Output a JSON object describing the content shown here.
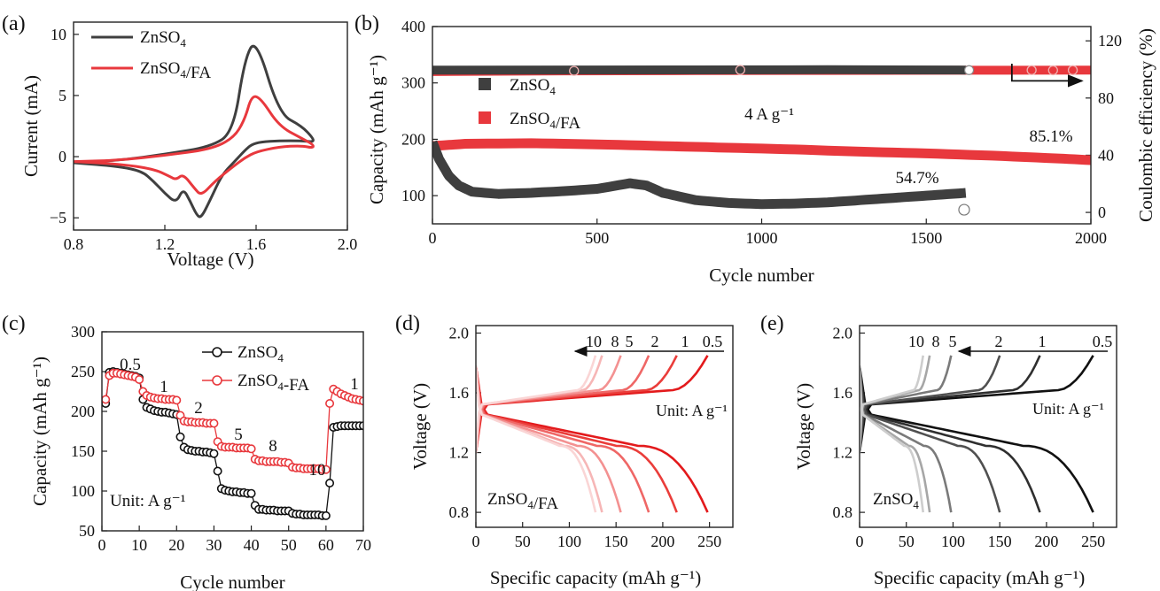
{
  "figure": {
    "colors": {
      "znso4": "#3f3f3f",
      "fa": "#e8383d",
      "axis": "#222222"
    },
    "panels": [
      {
        "id": "a",
        "tag": "(a)"
      },
      {
        "id": "b",
        "tag": "(b)"
      },
      {
        "id": "c",
        "tag": "(c)"
      },
      {
        "id": "d",
        "tag": "(d)"
      },
      {
        "id": "e",
        "tag": "(e)"
      }
    ]
  },
  "chart_data": [
    {
      "panel": "(a)",
      "type": "line",
      "xlabel": "Voltage (V)",
      "ylabel": "Current (mA)",
      "xlim": [
        0.8,
        2.0
      ],
      "ylim": [
        -6,
        11
      ],
      "xticks": [
        0.8,
        1.2,
        1.6,
        2.0
      ],
      "xtick_labels": [
        "0.8",
        "1.2",
        "1.6",
        "2.0"
      ],
      "yticks": [
        -5,
        0,
        5,
        10
      ],
      "ytick_labels": [
        "−5",
        "0",
        "5",
        "10"
      ],
      "legend": [
        "ZnSO4",
        "ZnSO4/FA"
      ],
      "series": [
        {
          "name": "ZnSO4",
          "x": [
            0.8,
            1.0,
            1.1,
            1.15,
            1.2,
            1.25,
            1.28,
            1.31,
            1.34,
            1.36,
            1.4,
            1.45,
            1.5,
            1.55,
            1.58,
            1.62,
            1.7,
            1.8,
            1.85,
            1.85,
            1.8,
            1.7,
            1.6,
            1.55,
            1.5,
            1.4,
            1.2,
            1.0,
            0.8
          ],
          "y": [
            -0.5,
            -0.8,
            -1.2,
            -2.0,
            -3.0,
            -3.8,
            -2.6,
            -3.6,
            -4.8,
            -5.0,
            -3.5,
            -1.5,
            -0.5,
            0.5,
            1.0,
            1.2,
            1.3,
            1.3,
            1.2,
            1.5,
            2.5,
            3.5,
            9.7,
            8.0,
            2.0,
            0.8,
            0.2,
            -0.3,
            -0.5
          ]
        },
        {
          "name": "ZnSO4/FA",
          "x": [
            0.8,
            1.0,
            1.15,
            1.22,
            1.25,
            1.28,
            1.33,
            1.36,
            1.42,
            1.5,
            1.55,
            1.6,
            1.7,
            1.8,
            1.85,
            1.85,
            1.8,
            1.7,
            1.62,
            1.58,
            1.55,
            1.5,
            1.4,
            1.2,
            1.0,
            0.8
          ],
          "y": [
            -0.4,
            -0.6,
            -1.0,
            -1.6,
            -1.9,
            -1.4,
            -2.6,
            -3.2,
            -2.0,
            -0.8,
            -0.1,
            0.4,
            0.8,
            0.9,
            0.7,
            1.0,
            1.5,
            2.5,
            4.8,
            5.0,
            3.0,
            1.5,
            0.6,
            0.1,
            -0.3,
            -0.4
          ]
        }
      ]
    },
    {
      "panel": "(b)",
      "type": "scatter",
      "xlabel": "Cycle number",
      "ylabel": "Capacity (mAh g⁻¹)",
      "ylabel_right": "Coulombic efficiency (%)",
      "xlim": [
        0,
        2000
      ],
      "ylim": [
        50,
        400
      ],
      "ylim_right": [
        -8,
        130
      ],
      "xticks": [
        0,
        500,
        1000,
        1500,
        2000
      ],
      "xtick_labels": [
        "0",
        "500",
        "1000",
        "1500",
        "2000"
      ],
      "yticks": [
        100,
        200,
        300,
        400
      ],
      "ytick_labels": [
        "100",
        "200",
        "300",
        "400"
      ],
      "yticks_right": [
        0,
        40,
        80,
        120
      ],
      "ytick_labels_right": [
        "0",
        "40",
        "80",
        "120"
      ],
      "legend": [
        "ZnSO4",
        "ZnSO4/FA"
      ],
      "annotations": [
        "4 A g⁻¹",
        "85.1%",
        "54.7%"
      ],
      "series": [
        {
          "name": "ZnSO4 capacity",
          "x": [
            0,
            20,
            50,
            80,
            120,
            200,
            300,
            400,
            500,
            600,
            650,
            700,
            800,
            900,
            1000,
            1100,
            1200,
            1300,
            1400,
            1500,
            1600,
            1620
          ],
          "y": [
            195,
            165,
            135,
            118,
            107,
            103,
            105,
            108,
            112,
            122,
            118,
            105,
            92,
            87,
            85,
            86,
            88,
            92,
            96,
            100,
            104,
            105
          ]
        },
        {
          "name": "ZnSO4/FA capacity",
          "x": [
            0,
            100,
            300,
            500,
            700,
            900,
            1100,
            1300,
            1500,
            1700,
            1900,
            2000
          ],
          "y": [
            188,
            192,
            193,
            191,
            188,
            185,
            182,
            178,
            175,
            171,
            166,
            163
          ]
        },
        {
          "name": "ZnSO4 CE",
          "x": [
            0,
            400,
            800,
            1200,
            1600,
            1620
          ],
          "y": [
            99.5,
            99.6,
            99.7,
            99.8,
            99.6,
            99.5
          ]
        },
        {
          "name": "ZnSO4/FA CE",
          "x": [
            0,
            400,
            800,
            1200,
            1600,
            2000
          ],
          "y": [
            98.5,
            99.0,
            99.2,
            99.3,
            99.4,
            99.5
          ]
        }
      ]
    },
    {
      "panel": "(c)",
      "type": "line",
      "xlabel": "Cycle number",
      "ylabel": "Capacity (mAh g⁻¹)",
      "xlim": [
        0,
        70
      ],
      "ylim": [
        50,
        300
      ],
      "xticks": [
        0,
        10,
        20,
        30,
        40,
        50,
        60,
        70
      ],
      "xtick_labels": [
        "0",
        "10",
        "20",
        "30",
        "40",
        "50",
        "60",
        "70"
      ],
      "yticks": [
        50,
        100,
        150,
        200,
        250,
        300
      ],
      "ytick_labels": [
        "50",
        "100",
        "150",
        "200",
        "250",
        "300"
      ],
      "legend": [
        "ZnSO4",
        "ZnSO4-FA"
      ],
      "annotations": [
        "0.5",
        "1",
        "2",
        "5",
        "8",
        "10",
        "1",
        "Unit: A g⁻¹"
      ],
      "series": [
        {
          "name": "ZnSO4",
          "x": [
            1,
            2,
            3,
            4,
            5,
            6,
            7,
            8,
            9,
            10,
            11,
            12,
            13,
            14,
            15,
            16,
            17,
            18,
            19,
            20,
            21,
            22,
            23,
            24,
            25,
            26,
            27,
            28,
            29,
            30,
            31,
            32,
            33,
            34,
            35,
            36,
            37,
            38,
            39,
            40,
            41,
            42,
            43,
            44,
            45,
            46,
            47,
            48,
            49,
            50,
            51,
            52,
            53,
            54,
            55,
            56,
            57,
            58,
            59,
            60,
            61,
            62,
            63,
            64,
            65,
            66,
            67,
            68,
            69,
            70
          ],
          "y": [
            210,
            249,
            250,
            249,
            248,
            247,
            246,
            245,
            244,
            242,
            215,
            205,
            203,
            201,
            200,
            199,
            199,
            198,
            197,
            196,
            168,
            155,
            152,
            151,
            150,
            150,
            149,
            149,
            148,
            147,
            125,
            103,
            101,
            100,
            99,
            99,
            98,
            98,
            97,
            97,
            82,
            77,
            77,
            76,
            76,
            76,
            75,
            75,
            75,
            75,
            72,
            71,
            71,
            70,
            70,
            70,
            70,
            70,
            69,
            69,
            110,
            180,
            181,
            182,
            182,
            182,
            182,
            182,
            182,
            182
          ]
        },
        {
          "name": "ZnSO4-FA",
          "x": [
            1,
            2,
            3,
            4,
            5,
            6,
            7,
            8,
            9,
            10,
            11,
            12,
            13,
            14,
            15,
            16,
            17,
            18,
            19,
            20,
            21,
            22,
            23,
            24,
            25,
            26,
            27,
            28,
            29,
            30,
            31,
            32,
            33,
            34,
            35,
            36,
            37,
            38,
            39,
            40,
            41,
            42,
            43,
            44,
            45,
            46,
            47,
            48,
            49,
            50,
            51,
            52,
            53,
            54,
            55,
            56,
            57,
            58,
            59,
            60,
            61,
            62,
            63,
            64,
            65,
            66,
            67,
            68,
            69,
            70
          ],
          "y": [
            215,
            245,
            248,
            248,
            247,
            246,
            245,
            244,
            243,
            240,
            225,
            220,
            218,
            217,
            216,
            216,
            215,
            215,
            215,
            214,
            195,
            188,
            187,
            187,
            186,
            186,
            186,
            185,
            185,
            185,
            162,
            156,
            155,
            155,
            155,
            154,
            154,
            154,
            154,
            153,
            140,
            138,
            138,
            137,
            137,
            137,
            137,
            136,
            136,
            135,
            130,
            129,
            129,
            128,
            128,
            128,
            128,
            128,
            127,
            127,
            210,
            228,
            225,
            222,
            220,
            218,
            216,
            215,
            214,
            213
          ]
        }
      ]
    },
    {
      "panel": "(d)",
      "type": "line",
      "xlabel": "Specific capacity (mAh g⁻¹)",
      "ylabel": "Voltage (V)",
      "xlim": [
        0,
        275
      ],
      "ylim": [
        0.7,
        2.05
      ],
      "xticks": [
        0,
        50,
        100,
        150,
        200,
        250
      ],
      "xtick_labels": [
        "0",
        "50",
        "100",
        "150",
        "200",
        "250"
      ],
      "yticks": [
        0.8,
        1.2,
        1.6,
        2.0
      ],
      "ytick_labels": [
        "0.8",
        "1.2",
        "1.6",
        "2.0"
      ],
      "rate_labels": [
        "10",
        "8",
        "5",
        "2",
        "1",
        "0.5"
      ],
      "annotations": [
        "Unit: A g⁻¹",
        "ZnSO4/FA"
      ],
      "discharge_capacity": [
        128,
        135,
        155,
        185,
        215,
        248
      ],
      "series": [
        {
          "name": "0.5",
          "capacity": 248
        },
        {
          "name": "1",
          "capacity": 215
        },
        {
          "name": "2",
          "capacity": 185
        },
        {
          "name": "5",
          "capacity": 155
        },
        {
          "name": "8",
          "capacity": 135
        },
        {
          "name": "10",
          "capacity": 128
        }
      ]
    },
    {
      "panel": "(e)",
      "type": "line",
      "xlabel": "Specific capacity (mAh g⁻¹)",
      "ylabel": "Voltage (V)",
      "xlim": [
        0,
        275
      ],
      "ylim": [
        0.7,
        2.05
      ],
      "xticks": [
        0,
        50,
        100,
        150,
        200,
        250
      ],
      "xtick_labels": [
        "0",
        "50",
        "100",
        "150",
        "200",
        "250"
      ],
      "yticks": [
        0.8,
        1.2,
        1.6,
        2.0
      ],
      "ytick_labels": [
        "0.8",
        "1.2",
        "1.6",
        "2.0"
      ],
      "rate_labels": [
        "10",
        "8",
        "5",
        "2",
        "1",
        "0.5"
      ],
      "annotations": [
        "Unit: A g⁻¹",
        "ZnSO4"
      ],
      "discharge_capacity": [
        68,
        75,
        98,
        150,
        193,
        250
      ],
      "series": [
        {
          "name": "0.5",
          "capacity": 250
        },
        {
          "name": "1",
          "capacity": 193
        },
        {
          "name": "2",
          "capacity": 150
        },
        {
          "name": "5",
          "capacity": 98
        },
        {
          "name": "8",
          "capacity": 75
        },
        {
          "name": "10",
          "capacity": 68
        }
      ]
    }
  ]
}
